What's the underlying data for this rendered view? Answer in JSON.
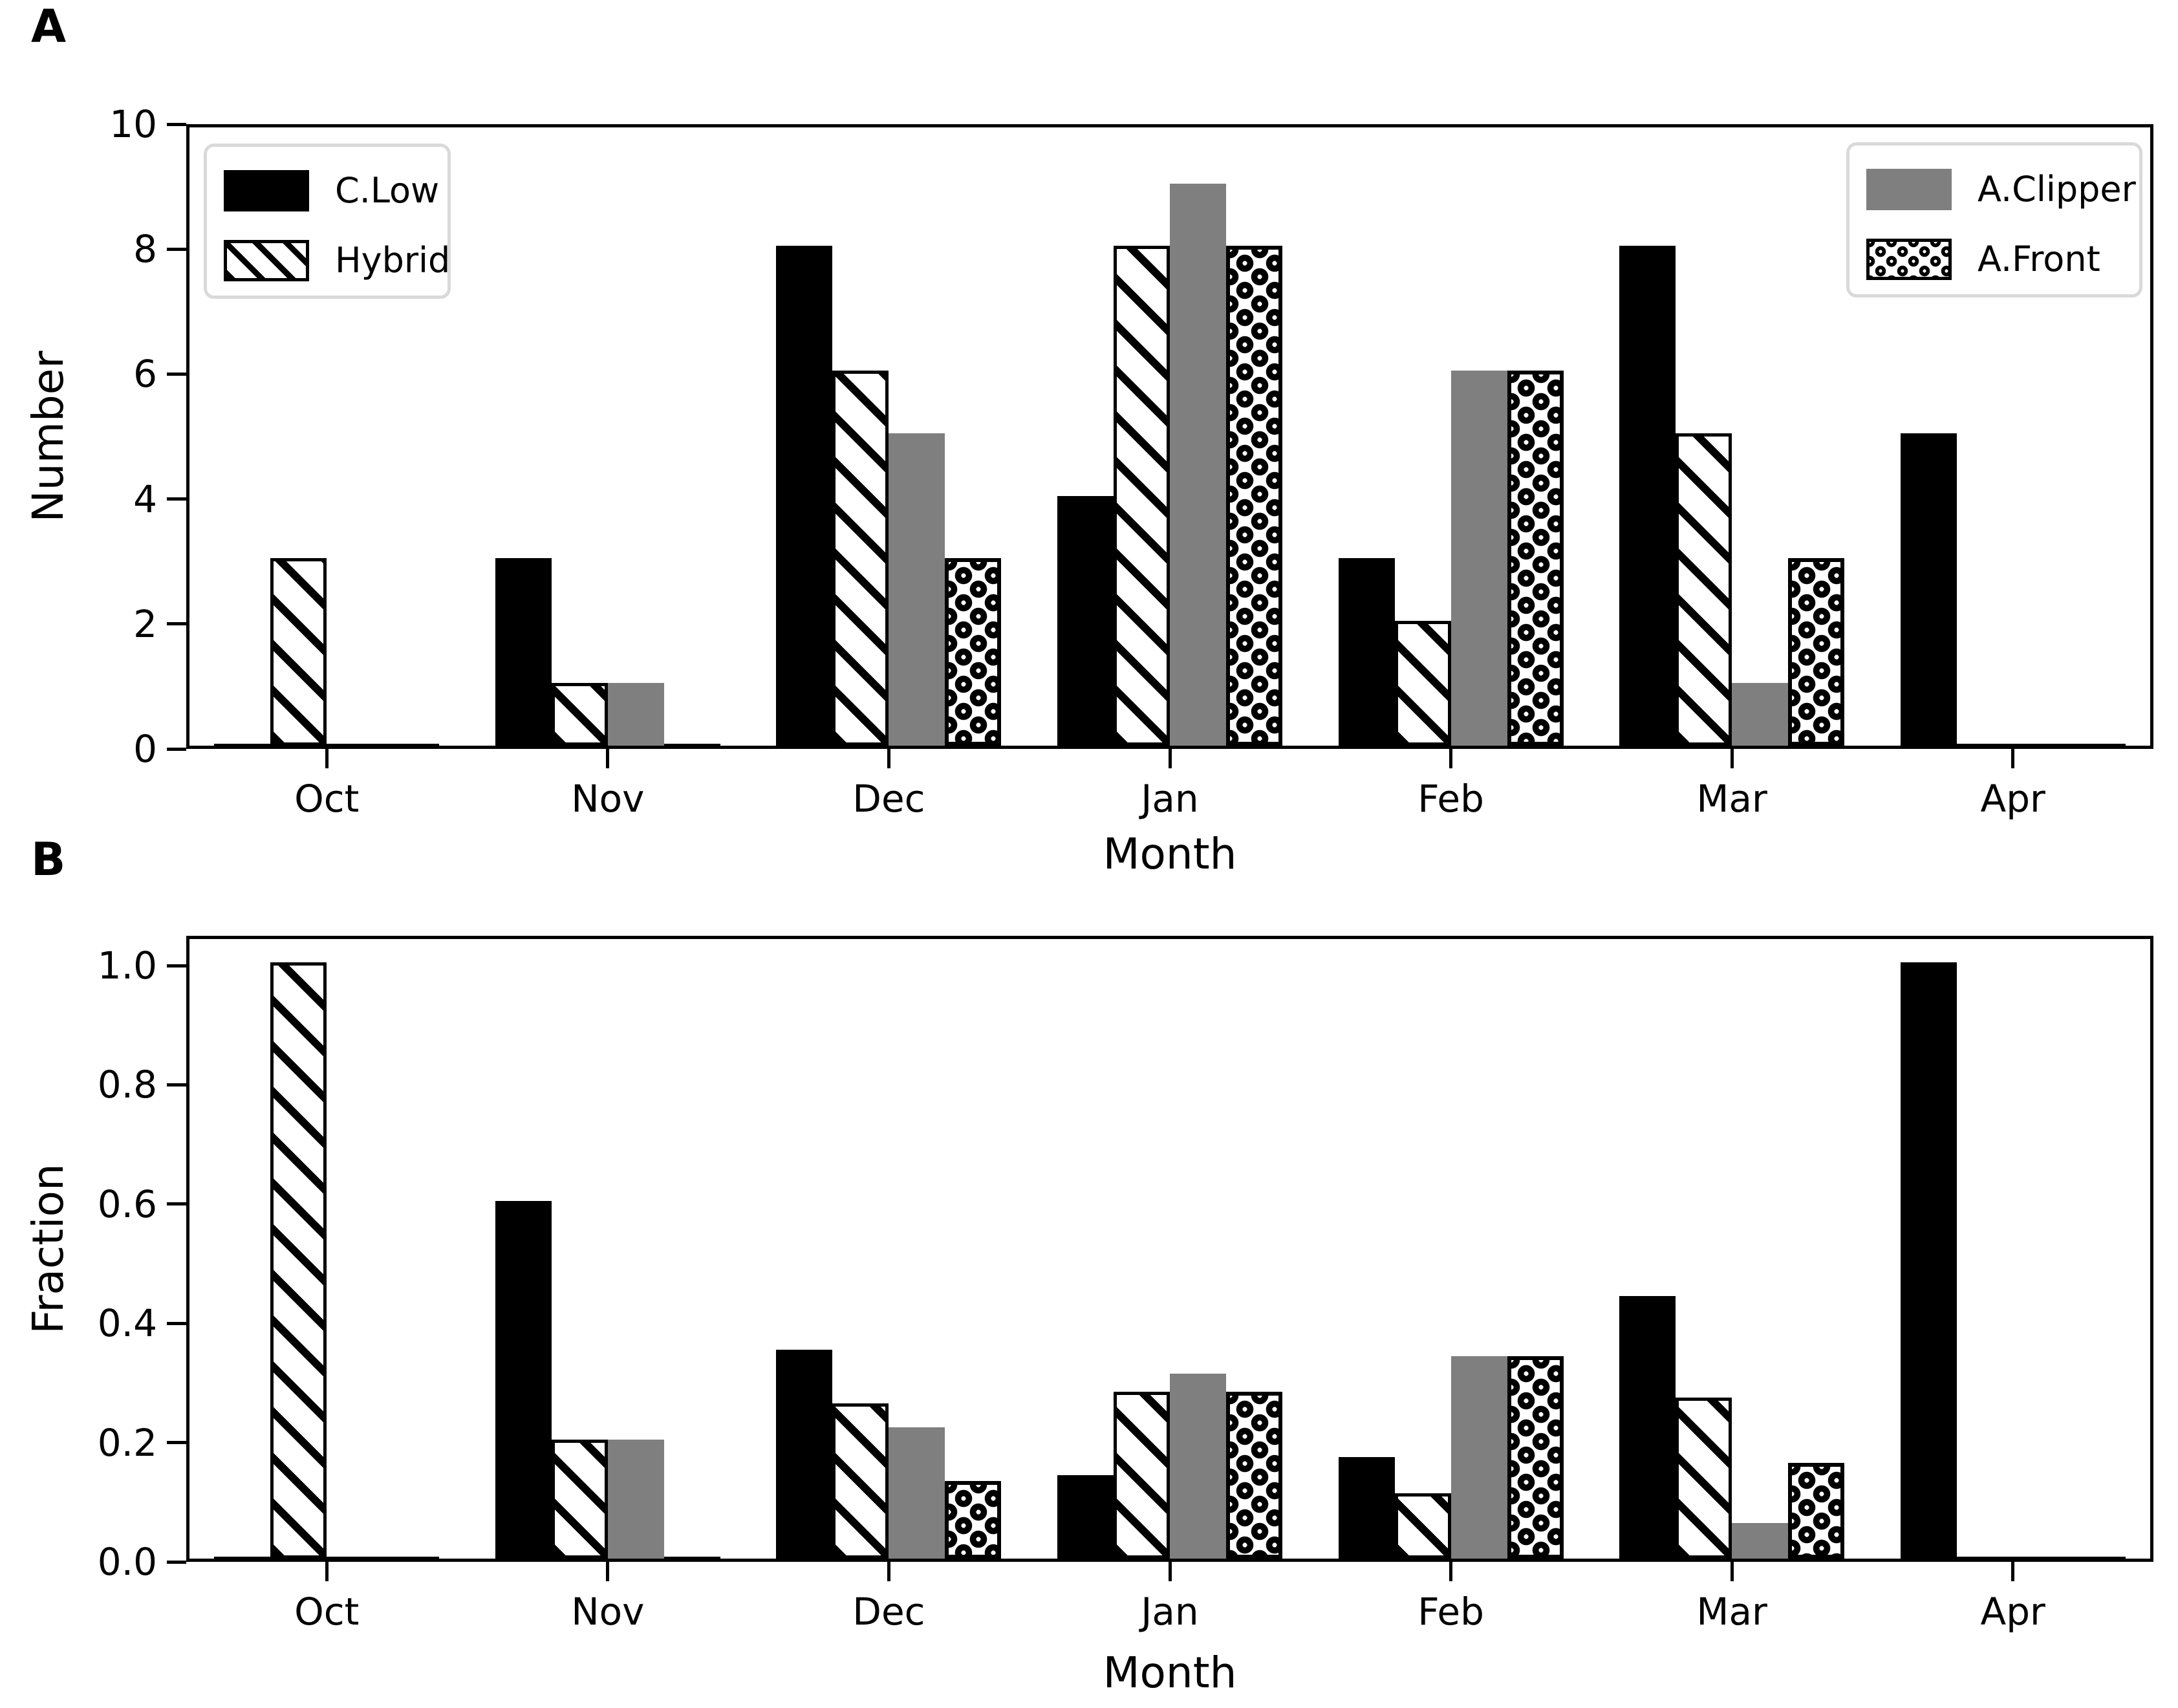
{
  "months": [
    "Oct",
    "Nov",
    "Dec",
    "Jan",
    "Feb",
    "Mar",
    "Apr"
  ],
  "series_names": [
    "C.Low",
    "Hybrid",
    "A.Clipper",
    "A.Front"
  ],
  "colors": {
    "bar_black": "#000000",
    "bar_gray": "#7f7f7f",
    "legend_border": "#d9d9d9",
    "text": "#000000"
  },
  "panel_a": {
    "letter": "A",
    "ylabel": "Number",
    "xlabel": "Month",
    "ytick_labels": [
      "0",
      "2",
      "4",
      "6",
      "8",
      "10"
    ]
  },
  "panel_b": {
    "letter": "B",
    "ylabel": "Fraction",
    "xlabel": "Month",
    "ytick_labels": [
      "0.0",
      "0.2",
      "0.4",
      "0.6",
      "0.8",
      "1.0"
    ]
  },
  "legend_left": [
    {
      "label": "C.Low",
      "pattern": "solid"
    },
    {
      "label": "Hybrid",
      "pattern": "hatch"
    }
  ],
  "legend_right": [
    {
      "label": "A.Clipper",
      "pattern": "gray"
    },
    {
      "label": "A.Front",
      "pattern": "dots"
    }
  ],
  "chart_data": [
    {
      "type": "bar",
      "panel": "A",
      "categories": [
        "Oct",
        "Nov",
        "Dec",
        "Jan",
        "Feb",
        "Mar",
        "Apr"
      ],
      "series": [
        {
          "name": "C.Low",
          "pattern": "solid",
          "values": [
            0,
            3,
            8,
            4,
            3,
            8,
            5
          ]
        },
        {
          "name": "Hybrid",
          "pattern": "hatch",
          "values": [
            3,
            1,
            6,
            8,
            2,
            5,
            0
          ]
        },
        {
          "name": "A.Clipper",
          "pattern": "gray",
          "values": [
            0,
            1,
            5,
            9,
            6,
            1,
            0
          ]
        },
        {
          "name": "A.Front",
          "pattern": "dots",
          "values": [
            0,
            0,
            3,
            8,
            6,
            3,
            0
          ]
        }
      ],
      "xlabel": "Month",
      "ylabel": "Number",
      "ylim": [
        0,
        10
      ],
      "yticks": [
        0,
        2,
        4,
        6,
        8,
        10
      ],
      "grid": false,
      "legend_position": "upper-left and upper-right inside axes"
    },
    {
      "type": "bar",
      "panel": "B",
      "categories": [
        "Oct",
        "Nov",
        "Dec",
        "Jan",
        "Feb",
        "Mar",
        "Apr"
      ],
      "series": [
        {
          "name": "C.Low",
          "pattern": "solid",
          "values": [
            0,
            0.6,
            0.35,
            0.14,
            0.17,
            0.44,
            1.0
          ]
        },
        {
          "name": "Hybrid",
          "pattern": "hatch",
          "values": [
            1.0,
            0.2,
            0.26,
            0.28,
            0.11,
            0.27,
            0
          ]
        },
        {
          "name": "A.Clipper",
          "pattern": "gray",
          "values": [
            0,
            0.2,
            0.22,
            0.31,
            0.34,
            0.06,
            0
          ]
        },
        {
          "name": "A.Front",
          "pattern": "dots",
          "values": [
            0,
            0,
            0.13,
            0.28,
            0.34,
            0.16,
            0
          ]
        }
      ],
      "xlabel": "Month",
      "ylabel": "Fraction",
      "ylim": [
        0,
        1.05
      ],
      "yticks": [
        0.0,
        0.2,
        0.4,
        0.6,
        0.8,
        1.0
      ],
      "grid": false,
      "legend_position": "none"
    }
  ]
}
